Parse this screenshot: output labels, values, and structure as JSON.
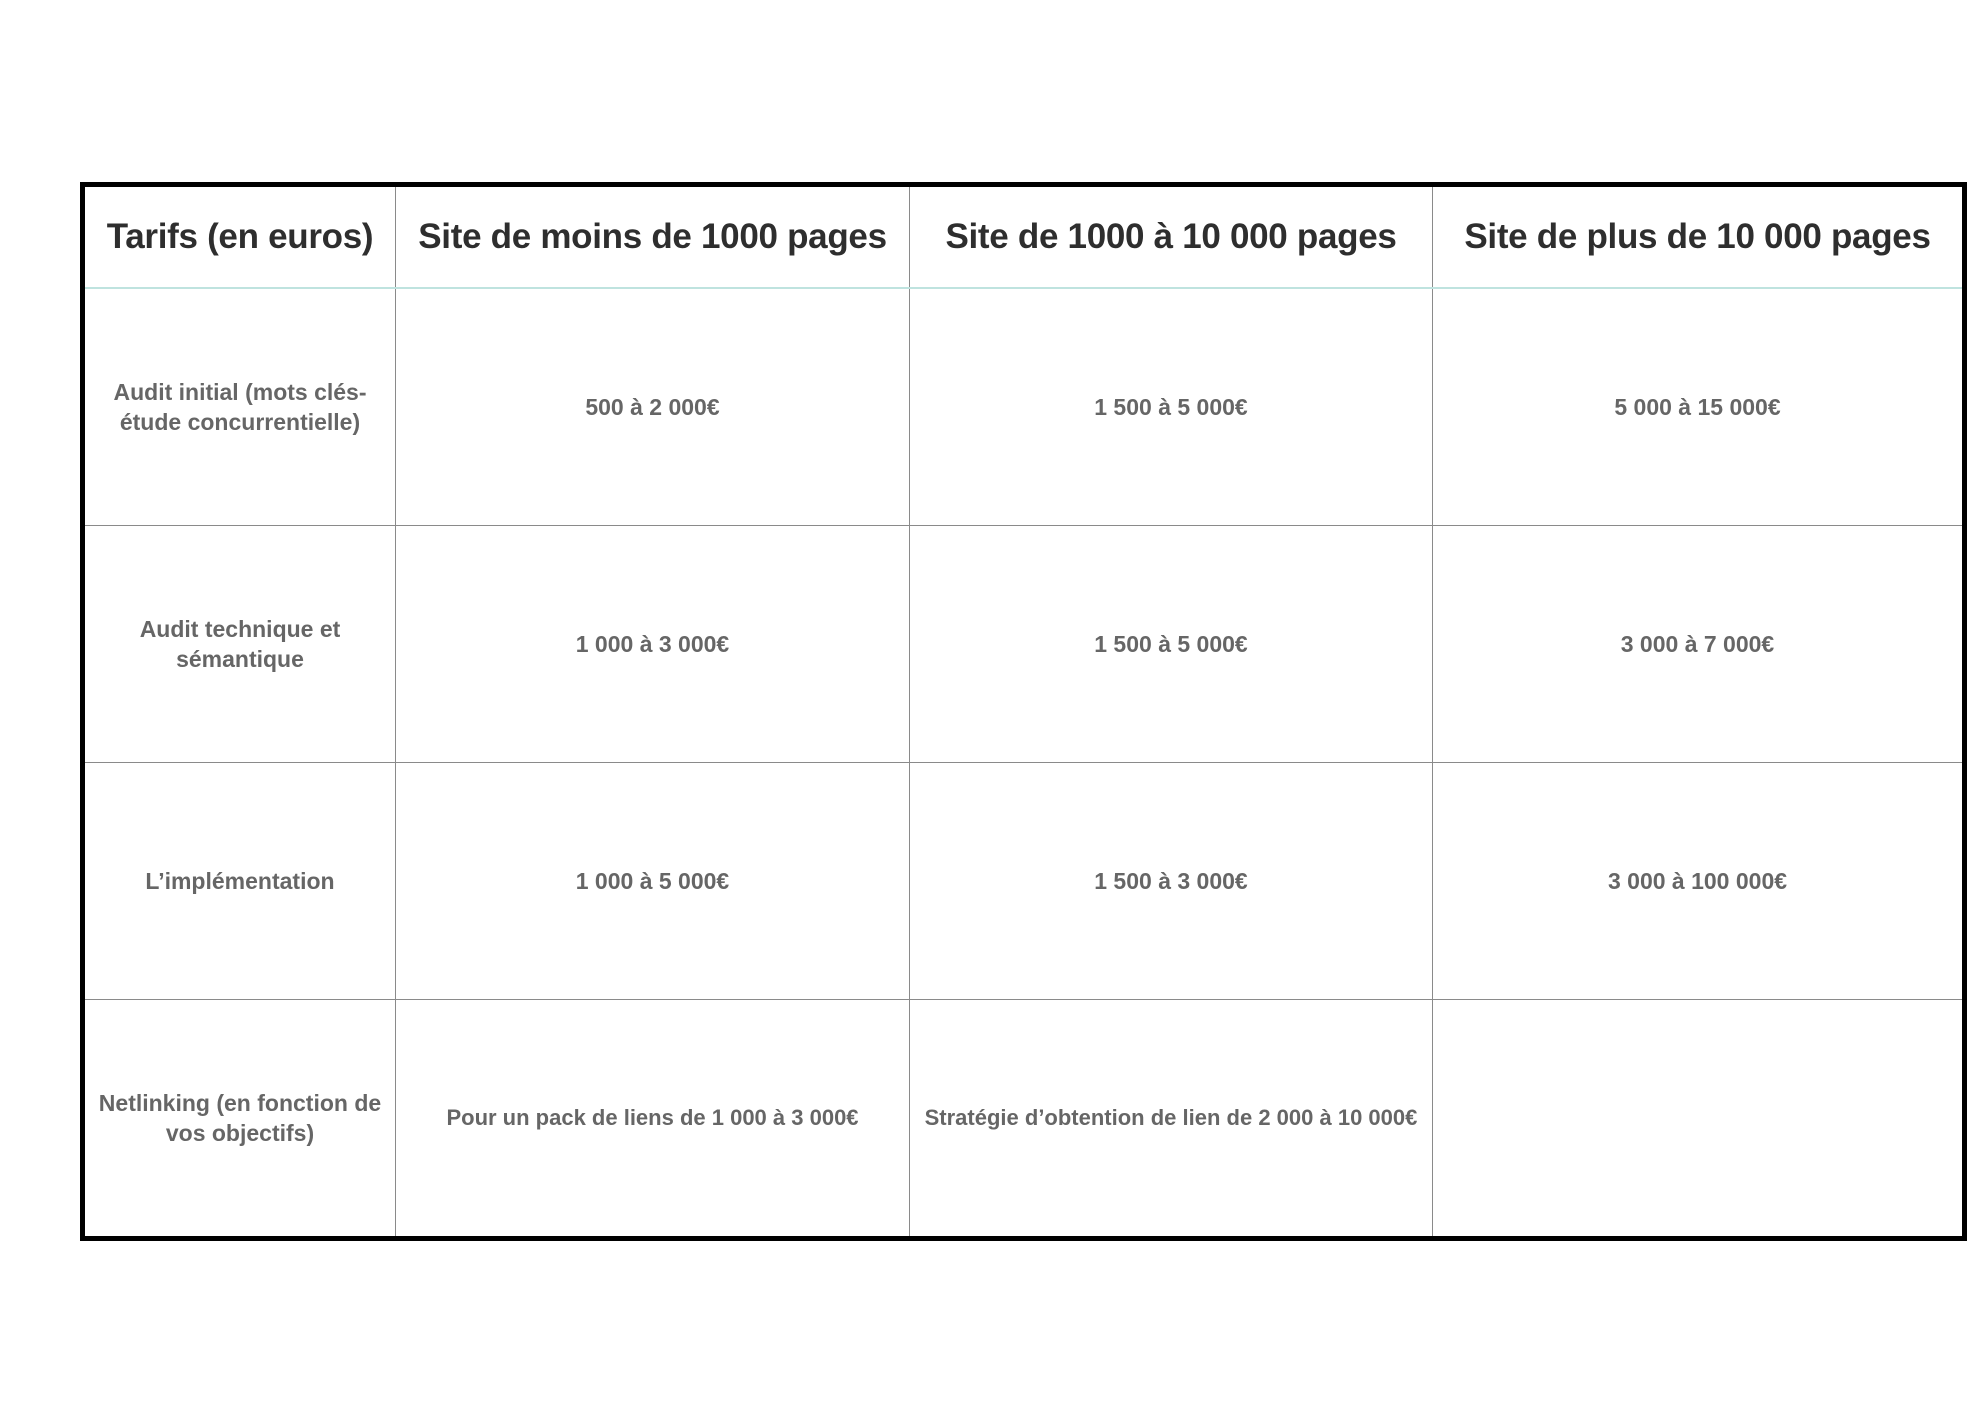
{
  "table": {
    "headers": [
      "Tarifs (en euros)",
      "Site de moins de 1000 pages",
      "Site de 1000 à 10 000 pages",
      "Site de plus de 10 000 pages"
    ],
    "rows": [
      [
        "Audit initial (mots clés- étude concurrentielle)",
        "500 à 2 000€",
        "1 500 à 5 000€",
        "5 000 à 15 000€"
      ],
      [
        "Audit technique et sémantique",
        "1 000 à 3 000€",
        "1 500 à 5 000€",
        "3 000 à 7 000€"
      ],
      [
        "L’implémentation",
        "1 000 à 5 000€",
        "1 500 à 3 000€",
        "3 000 à 100 000€"
      ],
      [
        "Netlinking (en fonction de vos objectifs)",
        "Pour un pack de liens de 1 000 à 3 000€",
        "Stratégie d’obtention de lien de 2 000 à 10 000€",
        ""
      ]
    ]
  },
  "colors": {
    "header_text": "#2e2e2e",
    "body_text": "#666666",
    "outer_border": "#000000",
    "header_divider": "#bfe3df"
  }
}
